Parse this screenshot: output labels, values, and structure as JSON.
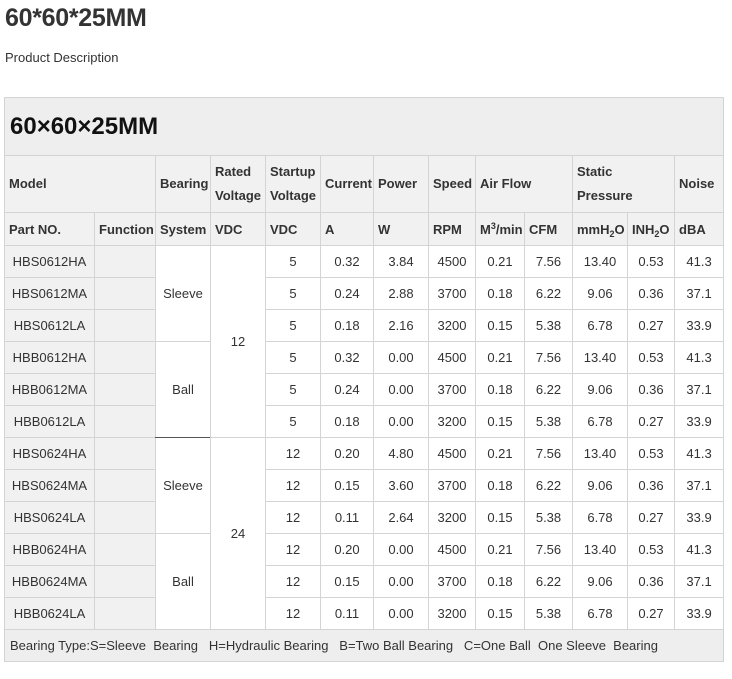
{
  "page": {
    "title": "60*60*25MM",
    "subtitle": "Product Description"
  },
  "table": {
    "title": "60×60×25MM",
    "header_row1": {
      "model": "Model",
      "bearing": "Bearing",
      "rated_voltage": "Rated Voltage",
      "startup_voltage": "Startup Voltage",
      "current": "Current",
      "power": "Power",
      "speed": "Speed",
      "air_flow": "Air Flow",
      "static_pressure": "Static Pressure",
      "noise": "Noise"
    },
    "header_row2": {
      "part_no": "Part NO.",
      "function": "Function",
      "system": "System",
      "vdc1": "VDC",
      "vdc2": "VDC",
      "a": "A",
      "w": "W",
      "rpm": "RPM",
      "m3_base": "M",
      "m3_sup": "3",
      "m3_rest": "/min",
      "cfm": "CFM",
      "mmh_base": "mmH",
      "mmh_sub": "2",
      "mmh_rest": "O",
      "inh_base": "INH",
      "inh_sub": "2",
      "inh_rest": "O",
      "dba": "dBA"
    },
    "rows": [
      {
        "part": "HBS0612HA",
        "function": "",
        "startup": "5",
        "current": "0.32",
        "power": "3.84",
        "speed": "4500",
        "m3min": "0.21",
        "cfm": "7.56",
        "mmh2o": "13.40",
        "inh2o": "0.53",
        "noise": "41.3"
      },
      {
        "part": "HBS0612MA",
        "function": "",
        "startup": "5",
        "current": "0.24",
        "power": "2.88",
        "speed": "3700",
        "m3min": "0.18",
        "cfm": "6.22",
        "mmh2o": "9.06",
        "inh2o": "0.36",
        "noise": "37.1"
      },
      {
        "part": "HBS0612LA",
        "function": "",
        "startup": "5",
        "current": "0.18",
        "power": "2.16",
        "speed": "3200",
        "m3min": "0.15",
        "cfm": "5.38",
        "mmh2o": "6.78",
        "inh2o": "0.27",
        "noise": "33.9"
      },
      {
        "part": "HBB0612HA",
        "function": "",
        "startup": "5",
        "current": "0.32",
        "power": "0.00",
        "speed": "4500",
        "m3min": "0.21",
        "cfm": "7.56",
        "mmh2o": "13.40",
        "inh2o": "0.53",
        "noise": "41.3"
      },
      {
        "part": "HBB0612MA",
        "function": "",
        "startup": "5",
        "current": "0.24",
        "power": "0.00",
        "speed": "3700",
        "m3min": "0.18",
        "cfm": "6.22",
        "mmh2o": "9.06",
        "inh2o": "0.36",
        "noise": "37.1"
      },
      {
        "part": "HBB0612LA",
        "function": "",
        "startup": "5",
        "current": "0.18",
        "power": "0.00",
        "speed": "3200",
        "m3min": "0.15",
        "cfm": "5.38",
        "mmh2o": "6.78",
        "inh2o": "0.27",
        "noise": "33.9"
      },
      {
        "part": "HBS0624HA",
        "function": "",
        "startup": "12",
        "current": "0.20",
        "power": "4.80",
        "speed": "4500",
        "m3min": "0.21",
        "cfm": "7.56",
        "mmh2o": "13.40",
        "inh2o": "0.53",
        "noise": "41.3"
      },
      {
        "part": "HBS0624MA",
        "function": "",
        "startup": "12",
        "current": "0.15",
        "power": "3.60",
        "speed": "3700",
        "m3min": "0.18",
        "cfm": "6.22",
        "mmh2o": "9.06",
        "inh2o": "0.36",
        "noise": "37.1"
      },
      {
        "part": "HBS0624LA",
        "function": "",
        "startup": "12",
        "current": "0.11",
        "power": "2.64",
        "speed": "3200",
        "m3min": "0.15",
        "cfm": "5.38",
        "mmh2o": "6.78",
        "inh2o": "0.27",
        "noise": "33.9"
      },
      {
        "part": "HBB0624HA",
        "function": "",
        "startup": "12",
        "current": "0.20",
        "power": "0.00",
        "speed": "4500",
        "m3min": "0.21",
        "cfm": "7.56",
        "mmh2o": "13.40",
        "inh2o": "0.53",
        "noise": "41.3"
      },
      {
        "part": "HBB0624MA",
        "function": "",
        "startup": "12",
        "current": "0.15",
        "power": "0.00",
        "speed": "3700",
        "m3min": "0.18",
        "cfm": "6.22",
        "mmh2o": "9.06",
        "inh2o": "0.36",
        "noise": "37.1"
      },
      {
        "part": "HBB0624LA",
        "function": "",
        "startup": "12",
        "current": "0.11",
        "power": "0.00",
        "speed": "3200",
        "m3min": "0.15",
        "cfm": "5.38",
        "mmh2o": "6.78",
        "inh2o": "0.27",
        "noise": "33.9"
      }
    ],
    "bearing_groups": [
      "Sleeve",
      "Ball",
      "Sleeve",
      "Ball"
    ],
    "rated_voltage_groups": [
      "12",
      "24"
    ],
    "footnote": "Bearing Type:S=Sleeve  Bearing   H=Hydraulic Bearing   B=Two Ball Bearing   C=One Ball  One Sleeve  Bearing"
  }
}
